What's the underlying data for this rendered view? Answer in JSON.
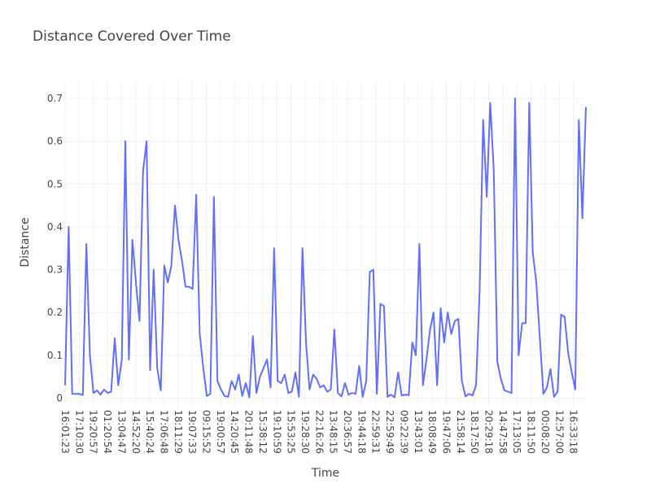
{
  "chart_data": {
    "type": "line",
    "title": "Distance Covered Over Time",
    "xlabel": "Time",
    "ylabel": "Distance",
    "ylim": [
      -0.02,
      0.74
    ],
    "yticks": [
      0,
      0.1,
      0.2,
      0.3,
      0.4,
      0.5,
      0.6,
      0.7
    ],
    "ytick_labels": [
      "0",
      "0.1",
      "0.2",
      "0.3",
      "0.4",
      "0.5",
      "0.6",
      "0.7"
    ],
    "xtick_labels": [
      "16:01:23",
      "17:10:30",
      "19:20:57",
      "01:20:54",
      "13:04:47",
      "14:52:20",
      "15:40:24",
      "17:06:48",
      "18:11:29",
      "19:07:33",
      "09:15:52",
      "19:00:57",
      "14:20:45",
      "20:11:48",
      "15:38:12",
      "19:10:59",
      "15:53:25",
      "19:28:30",
      "22:16:26",
      "13:48:15",
      "20:36:57",
      "19:44:18",
      "22:59:31",
      "22:59:49",
      "09:22:39",
      "13:43:01",
      "18:08:49",
      "19:47:06",
      "21:58:14",
      "18:17:50",
      "20:29:18",
      "14:47:58",
      "17:13:05",
      "18:11:50",
      "00:08:20",
      "12:57:00",
      "16:33:18"
    ],
    "grid": true,
    "legend": "none",
    "color": "#636efa",
    "series": [
      {
        "values": [
          0.03,
          0.4,
          0.01,
          0.01,
          0.01,
          0.007,
          0.36,
          0.1,
          0.012,
          0.018,
          0.008,
          0.02,
          0.012,
          0.015,
          0.14,
          0.03,
          0.09,
          0.6,
          0.09,
          0.37,
          0.27,
          0.18,
          0.53,
          0.6,
          0.065,
          0.3,
          0.07,
          0.018,
          0.31,
          0.27,
          0.31,
          0.45,
          0.37,
          0.32,
          0.26,
          0.26,
          0.255,
          0.475,
          0.15,
          0.07,
          0.005,
          0.01,
          0.47,
          0.04,
          0.02,
          0.005,
          0.003,
          0.04,
          0.02,
          0.055,
          0.005,
          0.035,
          0.002,
          0.145,
          0.012,
          0.05,
          0.07,
          0.09,
          0.025,
          0.35,
          0.04,
          0.035,
          0.055,
          0.012,
          0.015,
          0.06,
          0.003,
          0.35,
          0.13,
          0.02,
          0.055,
          0.045,
          0.025,
          0.03,
          0.015,
          0.02,
          0.16,
          0.012,
          0.004,
          0.035,
          0.008,
          0.012,
          0.01,
          0.075,
          0.003,
          0.04,
          0.295,
          0.3,
          0.01,
          0.22,
          0.215,
          0.003,
          0.008,
          0.002,
          0.06,
          0.006,
          0.008,
          0.007,
          0.13,
          0.1,
          0.36,
          0.03,
          0.09,
          0.16,
          0.2,
          0.03,
          0.21,
          0.13,
          0.2,
          0.15,
          0.18,
          0.185,
          0.04,
          0.004,
          0.01,
          0.006,
          0.03,
          0.25,
          0.65,
          0.47,
          0.69,
          0.53,
          0.085,
          0.045,
          0.018,
          0.015,
          0.012,
          0.7,
          0.1,
          0.175,
          0.175,
          0.69,
          0.34,
          0.27,
          0.14,
          0.01,
          0.025,
          0.068,
          0.003,
          0.015,
          0.195,
          0.19,
          0.105,
          0.06,
          0.02,
          0.65,
          0.42,
          0.68
        ]
      }
    ]
  }
}
